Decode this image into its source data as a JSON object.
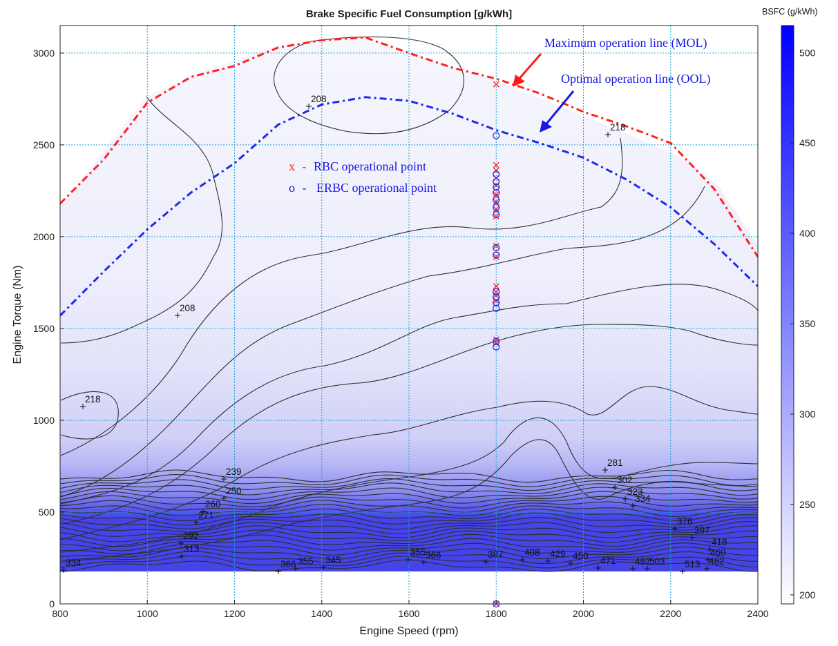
{
  "chart_data": {
    "type": "contour",
    "title": "Brake Specific Fuel Consumption [g/kWh]",
    "xlabel": "Engine Speed (rpm)",
    "ylabel": "Engine Torque (Nm)",
    "xlim": [
      800,
      2400
    ],
    "ylim": [
      0,
      3150
    ],
    "xticks": [
      800,
      1000,
      1200,
      1400,
      1600,
      1800,
      2000,
      2200,
      2400
    ],
    "yticks": [
      0,
      500,
      1000,
      1500,
      2000,
      2500,
      3000
    ],
    "grid": true,
    "colorbar": {
      "label": "BSFC (g/kWh)",
      "range": [
        195,
        515
      ],
      "ticks": [
        200,
        250,
        300,
        350,
        400,
        450,
        500
      ]
    },
    "lines": [
      {
        "name": "Maximum operation line (MOL)",
        "color": "#ff2020",
        "style": "dash-dot",
        "x": [
          800,
          900,
          1000,
          1100,
          1200,
          1300,
          1400,
          1500,
          1600,
          1700,
          1800,
          1900,
          2000,
          2100,
          2200,
          2300,
          2400
        ],
        "y": [
          2180,
          2420,
          2730,
          2870,
          2930,
          3030,
          3070,
          3085,
          3000,
          2920,
          2860,
          2780,
          2680,
          2600,
          2510,
          2260,
          1890
        ]
      },
      {
        "name": "Optimal operation line (OOL)",
        "color": "#1a2be8",
        "style": "dash-dot",
        "x": [
          800,
          900,
          1000,
          1100,
          1200,
          1300,
          1400,
          1500,
          1600,
          1700,
          1800,
          1900,
          2000,
          2100,
          2200,
          2300,
          2400
        ],
        "y": [
          1570,
          1810,
          2040,
          2240,
          2400,
          2610,
          2720,
          2760,
          2740,
          2670,
          2580,
          2510,
          2430,
          2310,
          2160,
          1960,
          1730
        ]
      }
    ],
    "points": [
      {
        "name": "RBC operational point",
        "marker": "x",
        "color": "#ff2020",
        "x": 1800,
        "y": [
          0,
          1420,
          1440,
          1650,
          1680,
          1700,
          1730,
          1890,
          1950,
          2110,
          2150,
          2190,
          2230,
          2280,
          2320,
          2360,
          2390,
          2830
        ]
      },
      {
        "name": "ERBC operational point",
        "marker": "o",
        "color": "#2a2ae8",
        "x": 1800,
        "y": [
          0,
          1400,
          1430,
          1610,
          1640,
          1670,
          1700,
          1900,
          1940,
          2120,
          2160,
          2200,
          2240,
          2270,
          2300,
          2340,
          2550
        ]
      }
    ],
    "contour_labels": [
      "208",
      "208",
      "218",
      "218",
      "239",
      "250",
      "260",
      "271",
      "281",
      "292",
      "302",
      "313",
      "323",
      "334",
      "334",
      "345",
      "355",
      "355",
      "366",
      "366",
      "376",
      "387",
      "397",
      "408",
      "418",
      "429",
      "450",
      "460",
      "471",
      "482",
      "492",
      "503",
      "513"
    ],
    "annotations": [
      {
        "text": "Maximum operation line (MOL)",
        "color": "#1515e0"
      },
      {
        "text": "Optimal operation line (OOL)",
        "color": "#1515e0"
      }
    ],
    "legend": [
      {
        "symbol": "x",
        "sep": "-",
        "text": "RBC operational point",
        "color": "#ff2020"
      },
      {
        "symbol": "o",
        "sep": "-",
        "text": "ERBC operational point",
        "color": "#2a2ae8"
      }
    ]
  }
}
